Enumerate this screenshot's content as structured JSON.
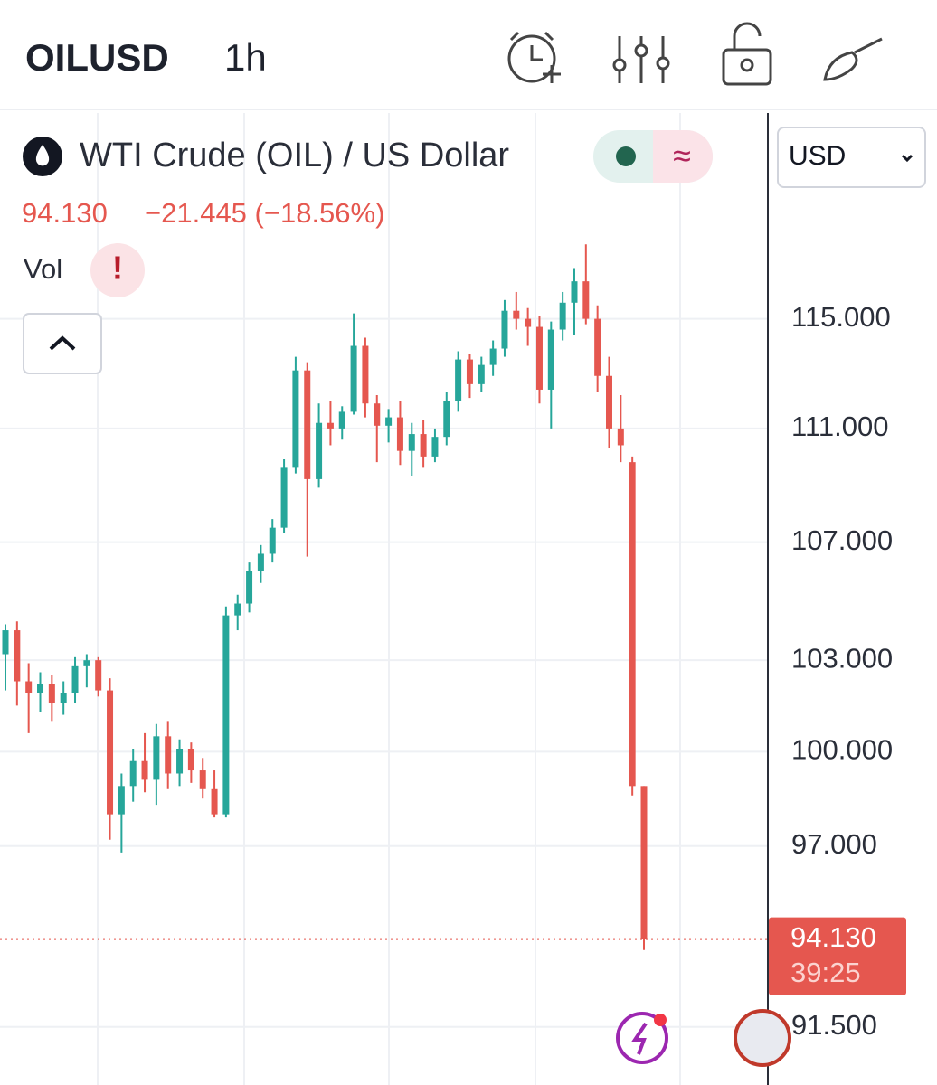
{
  "header": {
    "symbol": "OILUSD",
    "interval": "1h"
  },
  "legend": {
    "title": "WTI Crude (OIL) / US Dollar",
    "price": "94.130",
    "change": "−21.445 (−18.56%)",
    "volume": "Vol"
  },
  "currency_selector": "USD",
  "chart_data": {
    "type": "candlestick",
    "log_scale": true,
    "grid": true,
    "up_color": "#26a69a",
    "down_color": "#e5574f",
    "ylim": [
      89.8,
      122.9
    ],
    "yticks": [
      {
        "value": 115,
        "label": "115.000"
      },
      {
        "value": 111,
        "label": "111.000"
      },
      {
        "value": 107,
        "label": "107.000"
      },
      {
        "value": 103,
        "label": "103.000"
      },
      {
        "value": 100,
        "label": "100.000"
      },
      {
        "value": 97,
        "label": "97.000"
      },
      {
        "value": 91.5,
        "label": "91.500"
      }
    ],
    "open": [
      103.2,
      104.0,
      102.3,
      101.9,
      102.2,
      101.6,
      101.9,
      102.8,
      103.0,
      102.0,
      98.0,
      98.9,
      99.7,
      99.1,
      100.5,
      99.3,
      100.1,
      99.4,
      98.8,
      98.0,
      104.5,
      104.9,
      106.0,
      106.6,
      107.5,
      109.6,
      113.1,
      109.2,
      111.2,
      111.0,
      111.6,
      114.0,
      111.9,
      111.1,
      111.4,
      110.2,
      110.8,
      110.0,
      110.7,
      112.0,
      113.5,
      112.6,
      113.3,
      113.9,
      115.3,
      115.0,
      114.7,
      112.4,
      114.6,
      115.6,
      116.4,
      115.0,
      112.9,
      111.0,
      109.8,
      98.9
    ],
    "high": [
      104.2,
      104.3,
      102.9,
      102.6,
      102.5,
      102.3,
      103.1,
      103.2,
      103.1,
      102.4,
      99.3,
      100.1,
      100.6,
      100.9,
      101.0,
      100.4,
      100.3,
      99.8,
      99.4,
      104.8,
      105.2,
      106.3,
      106.9,
      107.8,
      109.9,
      113.6,
      113.4,
      111.9,
      112.0,
      111.8,
      115.2,
      114.3,
      112.2,
      111.7,
      112.0,
      111.2,
      111.3,
      111.0,
      112.3,
      113.8,
      113.7,
      113.6,
      114.2,
      115.7,
      116.0,
      115.4,
      115.1,
      114.9,
      116.0,
      116.9,
      117.8,
      115.5,
      113.6,
      112.2,
      110.0,
      98.9
    ],
    "low": [
      102.0,
      101.5,
      100.6,
      101.3,
      101.0,
      101.2,
      101.6,
      102.1,
      101.8,
      97.2,
      96.8,
      98.4,
      98.7,
      98.3,
      98.8,
      98.9,
      99.0,
      98.5,
      97.9,
      97.9,
      104.0,
      104.6,
      105.6,
      106.3,
      107.3,
      109.4,
      106.5,
      108.9,
      110.4,
      110.6,
      111.5,
      111.4,
      109.8,
      110.5,
      109.7,
      109.3,
      109.6,
      109.8,
      110.4,
      111.6,
      112.1,
      112.3,
      112.9,
      113.6,
      114.6,
      114.0,
      111.9,
      111.0,
      114.2,
      114.4,
      114.8,
      112.3,
      110.3,
      109.8,
      98.6,
      93.8
    ],
    "close": [
      104.0,
      102.3,
      101.9,
      102.2,
      101.6,
      101.9,
      102.8,
      103.0,
      102.0,
      98.0,
      98.9,
      99.7,
      99.1,
      100.5,
      99.3,
      100.1,
      99.4,
      98.8,
      98.0,
      104.5,
      104.9,
      106.0,
      106.6,
      107.5,
      109.6,
      113.1,
      109.2,
      111.2,
      111.0,
      111.6,
      114.0,
      111.9,
      111.1,
      111.4,
      110.2,
      110.8,
      110.0,
      110.7,
      112.0,
      113.5,
      112.6,
      113.3,
      113.9,
      115.3,
      115.0,
      114.7,
      112.4,
      114.6,
      115.6,
      116.4,
      115.0,
      112.9,
      111.0,
      110.4,
      98.9,
      94.13
    ],
    "last_price": {
      "value": 94.13,
      "label": "94.130"
    },
    "countdown": "39:25"
  }
}
